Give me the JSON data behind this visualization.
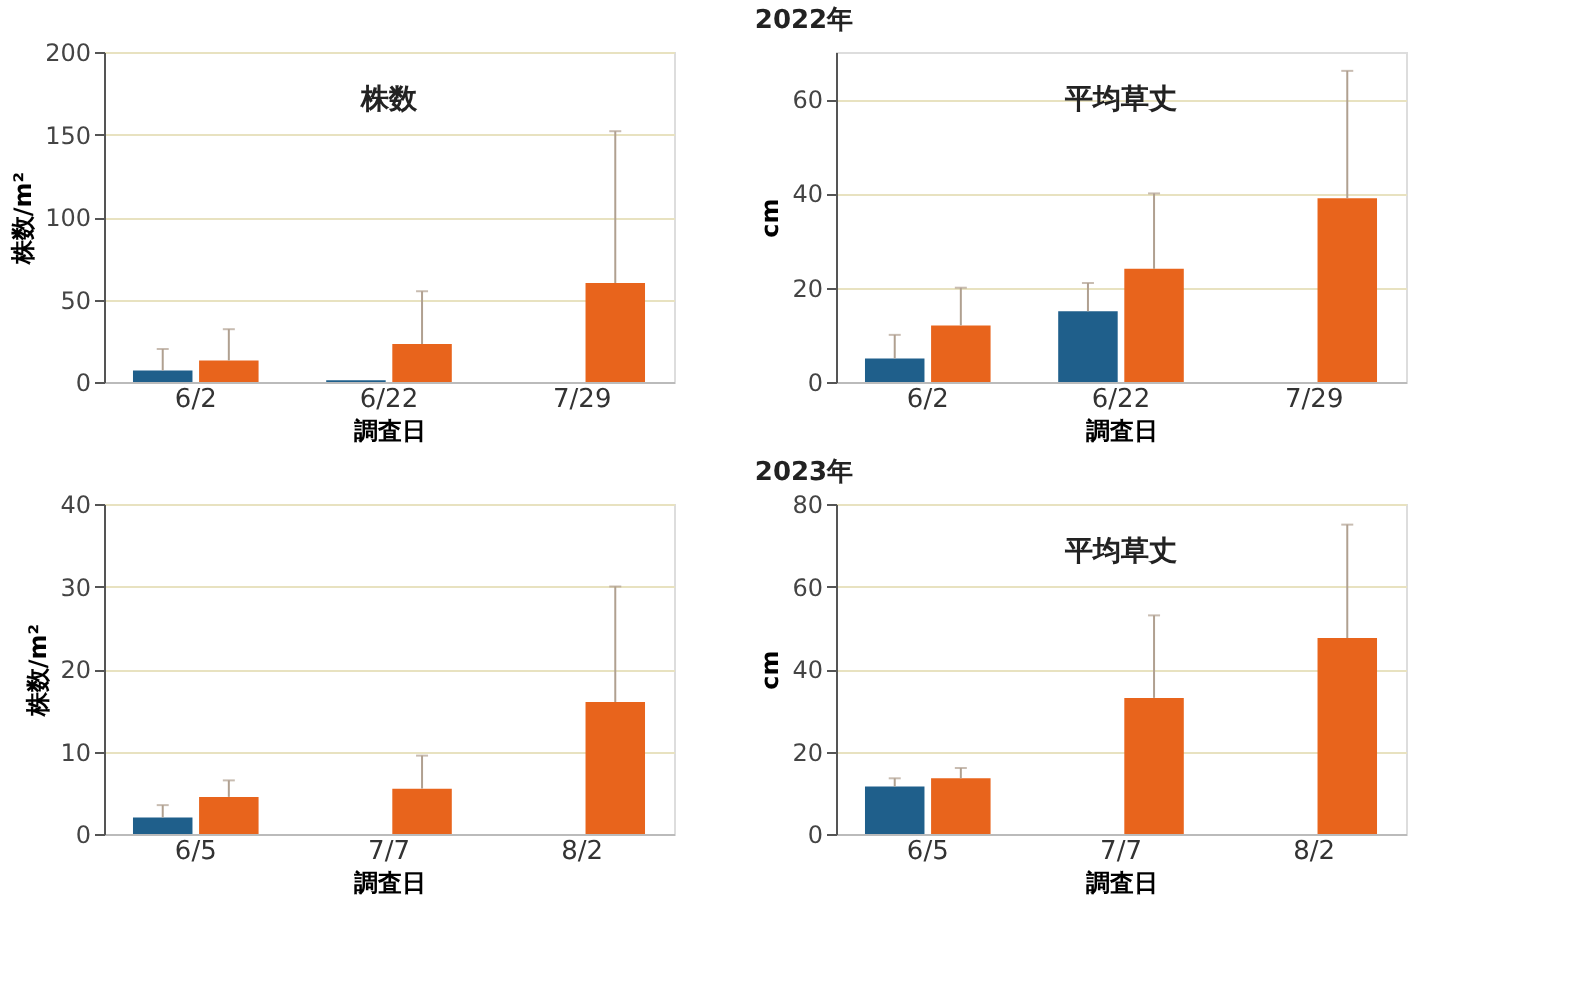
{
  "chart_data": [
    {
      "type": "bar",
      "title": "株数",
      "annotations": [
        "2022年"
      ],
      "xlabel": "調査日",
      "ylabel": "株数/m²",
      "categories": [
        "6/2",
        "6/22",
        "7/29"
      ],
      "ylim": [
        0,
        200
      ],
      "yticks": [
        0,
        50,
        100,
        150,
        200
      ],
      "grid": "y",
      "series": [
        {
          "color": "#1f5f8b",
          "values": [
            7,
            1,
            0
          ],
          "errors": [
            [
              7,
              20
            ],
            null,
            null
          ]
        },
        {
          "color": "#e8641c",
          "values": [
            13,
            23,
            60
          ],
          "errors": [
            [
              13,
              32
            ],
            [
              23,
              55
            ],
            [
              60,
              152
            ]
          ]
        }
      ]
    },
    {
      "type": "bar",
      "title": "平均草丈",
      "xlabel": "調査日",
      "ylabel": "cm",
      "categories": [
        "6/2",
        "6/22",
        "7/29"
      ],
      "ylim": [
        0,
        70
      ],
      "yticks": [
        0,
        20,
        40,
        60
      ],
      "grid": "y",
      "series": [
        {
          "color": "#1f5f8b",
          "values": [
            5,
            15,
            0
          ],
          "errors": [
            [
              5,
              10
            ],
            [
              15,
              21
            ],
            null
          ]
        },
        {
          "color": "#e8641c",
          "values": [
            12,
            24,
            39
          ],
          "errors": [
            [
              12,
              20
            ],
            [
              24,
              40
            ],
            [
              39,
              66
            ]
          ]
        }
      ]
    },
    {
      "type": "bar",
      "annotations": [
        "2023年"
      ],
      "xlabel": "調査日",
      "ylabel": "株数/m²",
      "categories": [
        "6/5",
        "7/7",
        "8/2"
      ],
      "ylim": [
        0,
        40
      ],
      "yticks": [
        0,
        10,
        20,
        30,
        40
      ],
      "grid": "y",
      "series": [
        {
          "color": "#1f5f8b",
          "values": [
            2,
            0,
            0
          ],
          "errors": [
            [
              2,
              3.5
            ],
            null,
            null
          ]
        },
        {
          "color": "#e8641c",
          "values": [
            4.5,
            5.5,
            16
          ],
          "errors": [
            [
              4.5,
              6.5
            ],
            [
              5.5,
              9.5
            ],
            [
              16,
              30
            ]
          ]
        }
      ]
    },
    {
      "type": "bar",
      "title": "平均草丈",
      "xlabel": "調査日",
      "ylabel": "cm",
      "categories": [
        "6/5",
        "7/7",
        "8/2"
      ],
      "ylim": [
        0,
        80
      ],
      "yticks": [
        0,
        20,
        40,
        60,
        80
      ],
      "grid": "y",
      "series": [
        {
          "color": "#1f5f8b",
          "values": [
            11.5,
            0,
            0
          ],
          "errors": [
            [
              11.5,
              13.5
            ],
            null,
            null
          ]
        },
        {
          "color": "#e8641c",
          "values": [
            13.5,
            33,
            47.5
          ],
          "errors": [
            [
              13.5,
              16
            ],
            [
              33,
              53
            ],
            [
              47.5,
              75
            ]
          ]
        }
      ]
    }
  ]
}
